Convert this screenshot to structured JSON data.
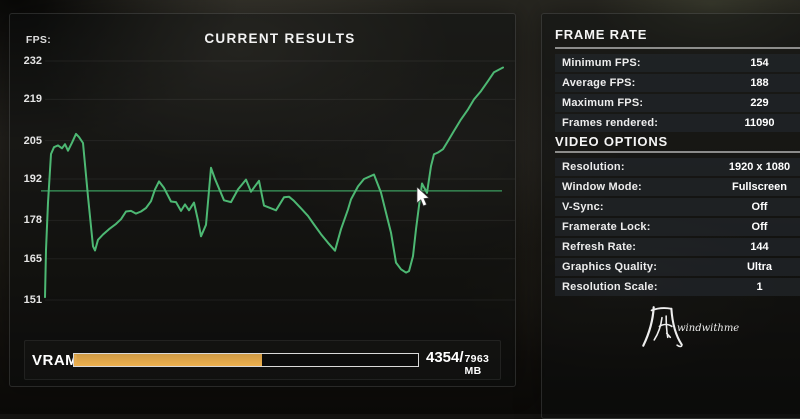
{
  "chart_data": {
    "type": "line",
    "title": "CURRENT RESULTS",
    "ylabel": "FPS:",
    "ylim": [
      151,
      232
    ],
    "y_ticks": [
      232,
      219,
      205,
      192,
      178,
      165,
      151
    ],
    "average_fps": 188,
    "grid": true,
    "line_color": "#4db873",
    "average_line_color": "#3da463",
    "points": [
      [
        44,
        152
      ],
      [
        45,
        168
      ],
      [
        47,
        184
      ],
      [
        50,
        200.5
      ],
      [
        53,
        202.8
      ],
      [
        57,
        203.4
      ],
      [
        61,
        202.4
      ],
      [
        64,
        203.8
      ],
      [
        67,
        201.6
      ],
      [
        71,
        204.3
      ],
      [
        75,
        207.3
      ],
      [
        78,
        206.2
      ],
      [
        82,
        204.2
      ],
      [
        87,
        186
      ],
      [
        92,
        169.2
      ],
      [
        94,
        167.8
      ],
      [
        97,
        171.4
      ],
      [
        102,
        173.2
      ],
      [
        108,
        175
      ],
      [
        115,
        176.8
      ],
      [
        120,
        178.4
      ],
      [
        125,
        181
      ],
      [
        130,
        181.2
      ],
      [
        135,
        180.3
      ],
      [
        140,
        181
      ],
      [
        145,
        182.2
      ],
      [
        150,
        184.5
      ],
      [
        154,
        188.5
      ],
      [
        158,
        191.2
      ],
      [
        163,
        189
      ],
      [
        170,
        184.4
      ],
      [
        175,
        184.2
      ],
      [
        180,
        181.2
      ],
      [
        184,
        183.4
      ],
      [
        188,
        181.4
      ],
      [
        193,
        184
      ],
      [
        197,
        178
      ],
      [
        200,
        172.6
      ],
      [
        205,
        176.5
      ],
      [
        210,
        195.8
      ],
      [
        214,
        192
      ],
      [
        223,
        184.8
      ],
      [
        230,
        184.2
      ],
      [
        237,
        188.5
      ],
      [
        245,
        191.8
      ],
      [
        250,
        187.7
      ],
      [
        258,
        191.4
      ],
      [
        263,
        183
      ],
      [
        270,
        182.1
      ],
      [
        275,
        181.4
      ],
      [
        283,
        185.8
      ],
      [
        288,
        186
      ],
      [
        293,
        184.6
      ],
      [
        300,
        182.1
      ],
      [
        307,
        179.5
      ],
      [
        313,
        176.6
      ],
      [
        320,
        173.3
      ],
      [
        327,
        170.4
      ],
      [
        334,
        167.7
      ],
      [
        340,
        175
      ],
      [
        347,
        181.7
      ],
      [
        350,
        185.1
      ],
      [
        357,
        189.5
      ],
      [
        363,
        192
      ],
      [
        373,
        193.5
      ],
      [
        380,
        187.4
      ],
      [
        385,
        180.6
      ],
      [
        390,
        173.8
      ],
      [
        395,
        163.7
      ],
      [
        400,
        161.4
      ],
      [
        405,
        160.3
      ],
      [
        408,
        160.8
      ],
      [
        412,
        165.9
      ],
      [
        415,
        175
      ],
      [
        418,
        182.9
      ],
      [
        421,
        190.5
      ],
      [
        426,
        187.3
      ],
      [
        430,
        196.4
      ],
      [
        433,
        200.4
      ],
      [
        437,
        201
      ],
      [
        442,
        202.1
      ],
      [
        447,
        204.9
      ],
      [
        453,
        208.3
      ],
      [
        460,
        212.2
      ],
      [
        467,
        215.6
      ],
      [
        473,
        219
      ],
      [
        480,
        221.8
      ],
      [
        487,
        225.2
      ],
      [
        493,
        228.2
      ],
      [
        502,
        229.8
      ]
    ]
  },
  "frame_rate": {
    "header": "FRAME RATE",
    "rows": [
      {
        "label": "Minimum FPS:",
        "value": "154"
      },
      {
        "label": "Average FPS:",
        "value": "188"
      },
      {
        "label": "Maximum FPS:",
        "value": "229"
      },
      {
        "label": "Frames rendered:",
        "value": "11090"
      }
    ]
  },
  "video_options": {
    "header": "VIDEO OPTIONS",
    "rows": [
      {
        "label": "Resolution:",
        "value": "1920 x 1080"
      },
      {
        "label": "Window Mode:",
        "value": "Fullscreen"
      },
      {
        "label": "V-Sync:",
        "value": "Off"
      },
      {
        "label": "Framerate Lock:",
        "value": "Off"
      },
      {
        "label": "Refresh Rate:",
        "value": "144"
      },
      {
        "label": "Graphics Quality:",
        "value": "Ultra"
      },
      {
        "label": "Resolution Scale:",
        "value": "1"
      }
    ]
  },
  "vram": {
    "label": "VRAM",
    "used_mb": 4354,
    "total_mb": 7963,
    "value_primary": "4354/",
    "value_secondary": "7963 MB",
    "bar_color": "#edb04e"
  },
  "watermark": {
    "glyph": "風",
    "text": "windwithme"
  }
}
